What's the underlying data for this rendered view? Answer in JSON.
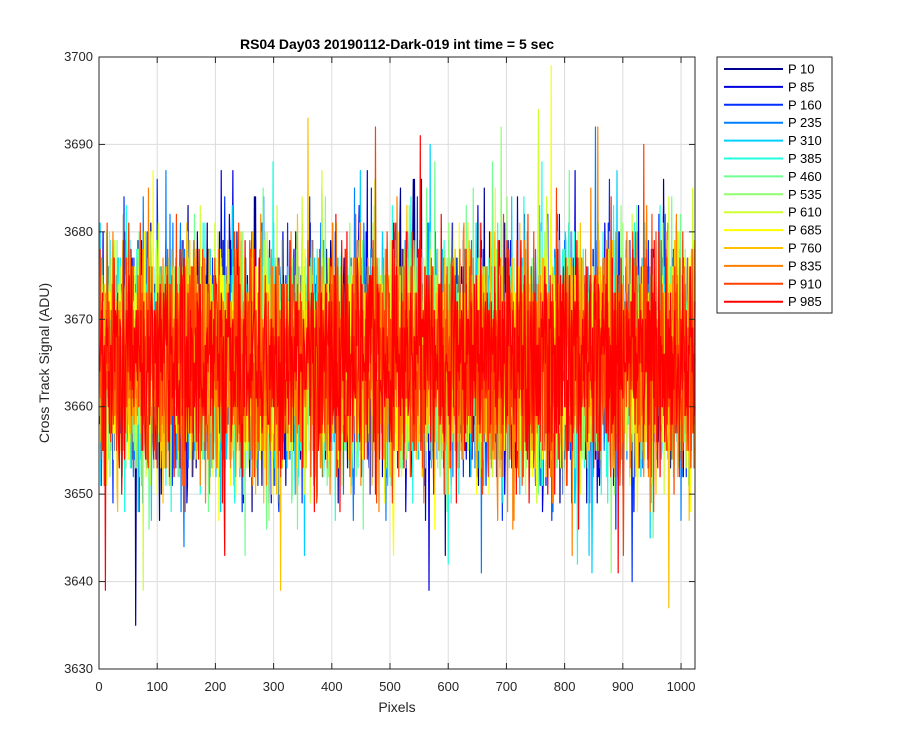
{
  "chart_data": {
    "type": "line",
    "title": "RS04 Day03 20190112-Dark-019 int time = 5 sec",
    "xlabel": "Pixels",
    "ylabel": "Cross Track Signal (ADU)",
    "xlim": [
      0,
      1024
    ],
    "ylim": [
      3630,
      3700
    ],
    "xticks": [
      0,
      100,
      200,
      300,
      400,
      500,
      600,
      700,
      800,
      900,
      1000
    ],
    "yticks": [
      3630,
      3640,
      3650,
      3660,
      3670,
      3680,
      3690,
      3700
    ],
    "grid": true,
    "legend_position": "outside-top-right",
    "point_count": 1024,
    "series": [
      {
        "name": "P 10",
        "color": "#00008f",
        "mean": 3665.5,
        "spread": 6.5,
        "min": 3635,
        "max": 3686,
        "seed": 11
      },
      {
        "name": "P 85",
        "color": "#0000df",
        "mean": 3665.5,
        "spread": 6.5,
        "min": 3639,
        "max": 3687,
        "seed": 23
      },
      {
        "name": "P 160",
        "color": "#0030ff",
        "mean": 3665.5,
        "spread": 6.5,
        "min": 3640,
        "max": 3686,
        "seed": 37
      },
      {
        "name": "P 235",
        "color": "#0080ff",
        "mean": 3665.5,
        "spread": 6.5,
        "min": 3641,
        "max": 3692,
        "seed": 41
      },
      {
        "name": "P 310",
        "color": "#00cfff",
        "mean": 3665.5,
        "spread": 6.5,
        "min": 3641,
        "max": 3690,
        "seed": 53
      },
      {
        "name": "P 385",
        "color": "#20ffdf",
        "mean": 3665.5,
        "spread": 6.5,
        "min": 3642,
        "max": 3688,
        "seed": 67
      },
      {
        "name": "P 460",
        "color": "#70ff8f",
        "mean": 3665.5,
        "spread": 6.5,
        "min": 3643,
        "max": 3688,
        "seed": 71
      },
      {
        "name": "P 535",
        "color": "#8fff70",
        "mean": 3665.5,
        "spread": 6.5,
        "min": 3641,
        "max": 3692,
        "seed": 83
      },
      {
        "name": "P 610",
        "color": "#cfff30",
        "mean": 3665.5,
        "spread": 6.5,
        "min": 3639,
        "max": 3694,
        "seed": 97
      },
      {
        "name": "P 685",
        "color": "#ffff00",
        "mean": 3665.5,
        "spread": 6.5,
        "min": 3643,
        "max": 3699,
        "seed": 101
      },
      {
        "name": "P 760",
        "color": "#ffc000",
        "mean": 3665.5,
        "spread": 6.5,
        "min": 3637,
        "max": 3693,
        "seed": 113
      },
      {
        "name": "P 835",
        "color": "#ff8000",
        "mean": 3665.5,
        "spread": 6.5,
        "min": 3643,
        "max": 3692,
        "seed": 127
      },
      {
        "name": "P 910",
        "color": "#ff4000",
        "mean": 3665.5,
        "spread": 6.5,
        "min": 3643,
        "max": 3692,
        "seed": 131
      },
      {
        "name": "P 985",
        "color": "#ff0000",
        "mean": 3665.5,
        "spread": 6.5,
        "min": 3639,
        "max": 3691,
        "seed": 139
      }
    ]
  }
}
